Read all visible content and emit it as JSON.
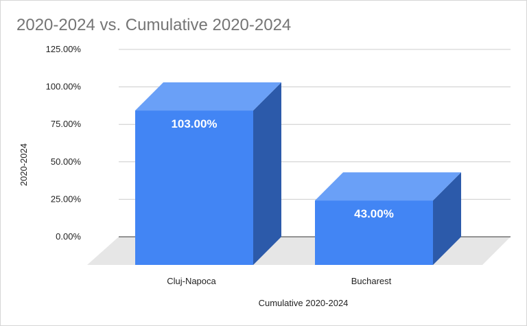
{
  "chart_data": {
    "type": "bar",
    "title": "2020-2024 vs. Cumulative 2020-2024",
    "xlabel": "Cumulative 2020-2024",
    "ylabel": "2020-2024",
    "categories": [
      "Cluj-Napoca",
      "Bucharest"
    ],
    "values": [
      103.0,
      43.0
    ],
    "data_labels": [
      "103.00%",
      "43.00%"
    ],
    "y_ticks": [
      {
        "value": 0,
        "label": "0.00%"
      },
      {
        "value": 25,
        "label": "25.00%"
      },
      {
        "value": 50,
        "label": "50.00%"
      },
      {
        "value": 75,
        "label": "75.00%"
      },
      {
        "value": 100,
        "label": "100.00%"
      },
      {
        "value": 125,
        "label": "125.00%"
      }
    ],
    "ylim": [
      0,
      125
    ],
    "grid": true,
    "style": "3d",
    "colors": {
      "bar_front": "#4285f4",
      "bar_top": "#6aa0f7",
      "bar_side": "#2c5aaa",
      "floor": "#e6e6e6",
      "grid": "#cccccc",
      "axis": "#333333"
    }
  }
}
